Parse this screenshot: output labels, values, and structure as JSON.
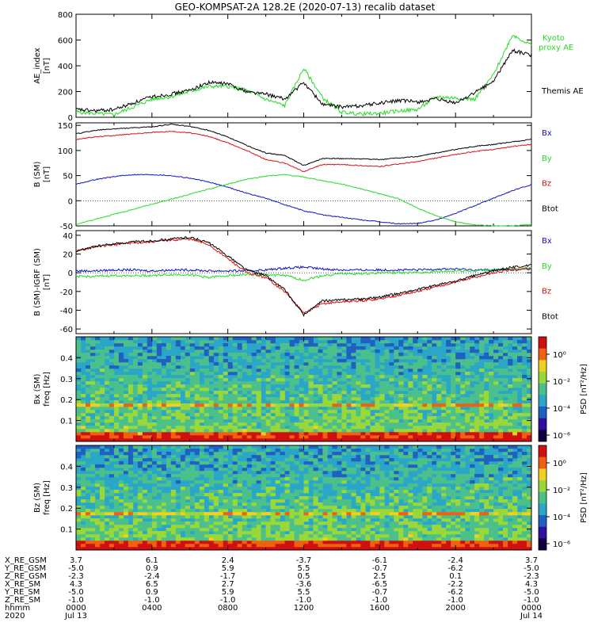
{
  "title": "GEO-KOMPSAT-2A 128.2E (2020-07-13) recalib dataset",
  "colors": {
    "black": "#000000",
    "green": "#22dd22",
    "red": "#dd1111",
    "blue": "#1111cc",
    "panel_bg": "#ffffff",
    "spec_bg": "#3aa0c0"
  },
  "chart_data": [
    {
      "id": "ae",
      "type": "line",
      "ylabel": "AE_index",
      "yunit": "[nT]",
      "ylim": [
        0,
        800
      ],
      "yticks": [
        0,
        200,
        400,
        600,
        800
      ],
      "x": [
        0,
        1,
        2,
        3,
        4,
        5,
        6,
        7,
        8,
        9,
        10,
        11,
        12,
        13,
        14,
        15,
        16,
        17,
        18,
        19,
        20,
        21,
        22,
        23,
        24
      ],
      "series": [
        {
          "name": "Kyoto proxy AE",
          "label_lines": [
            "Kyoto",
            "proxy AE"
          ],
          "color": "#22dd22",
          "values": [
            40,
            30,
            20,
            80,
            140,
            160,
            200,
            240,
            240,
            210,
            140,
            90,
            380,
            150,
            40,
            25,
            30,
            50,
            60,
            160,
            150,
            140,
            330,
            640,
            560
          ]
        },
        {
          "name": "Themis AE",
          "label_lines": [
            "Themis AE"
          ],
          "color": "#000000",
          "values": [
            60,
            50,
            60,
            110,
            160,
            180,
            210,
            270,
            260,
            200,
            180,
            140,
            270,
            100,
            80,
            90,
            110,
            130,
            120,
            140,
            110,
            190,
            280,
            520,
            480
          ]
        }
      ]
    },
    {
      "id": "bsm",
      "type": "line",
      "ylabel": "B (SM)",
      "yunit": "[nT]",
      "ylim": [
        -50,
        155
      ],
      "yticks": [
        -50,
        0,
        50,
        100,
        150
      ],
      "x": [
        0,
        1,
        2,
        3,
        4,
        5,
        6,
        7,
        8,
        9,
        10,
        11,
        12,
        13,
        14,
        15,
        16,
        17,
        18,
        19,
        20,
        21,
        22,
        23,
        24
      ],
      "series": [
        {
          "name": "Bx",
          "color": "#1111cc",
          "values": [
            33,
            42,
            48,
            52,
            52,
            50,
            45,
            37,
            27,
            15,
            5,
            -8,
            -20,
            -28,
            -33,
            -38,
            -42,
            -46,
            -45,
            -38,
            -25,
            -10,
            5,
            20,
            32
          ]
        },
        {
          "name": "By",
          "color": "#22dd22",
          "values": [
            -47,
            -37,
            -27,
            -17,
            -7,
            3,
            13,
            23,
            33,
            43,
            49,
            52,
            47,
            40,
            33,
            24,
            14,
            4,
            -15,
            -30,
            -42,
            -48,
            -50,
            -50,
            -47
          ]
        },
        {
          "name": "Bz",
          "color": "#dd1111",
          "values": [
            122,
            127,
            130,
            133,
            136,
            138,
            135,
            128,
            115,
            100,
            82,
            75,
            58,
            72,
            72,
            70,
            68,
            73,
            78,
            85,
            92,
            98,
            102,
            108,
            112
          ]
        },
        {
          "name": "Btot",
          "color": "#000000",
          "values": [
            133,
            140,
            143,
            145,
            147,
            152,
            148,
            140,
            127,
            110,
            95,
            90,
            70,
            84,
            84,
            83,
            82,
            85,
            88,
            95,
            102,
            108,
            112,
            117,
            122
          ]
        }
      ]
    },
    {
      "id": "bigrf",
      "type": "line",
      "ylabel": "B (SM)-IGRF (SM)",
      "yunit": "[nT]",
      "ylim": [
        -65,
        45
      ],
      "yticks": [
        -60,
        -40,
        -20,
        0,
        20,
        40
      ],
      "x": [
        0,
        1,
        2,
        3,
        4,
        5,
        6,
        7,
        8,
        9,
        10,
        11,
        12,
        13,
        14,
        15,
        16,
        17,
        18,
        19,
        20,
        21,
        22,
        23,
        24
      ],
      "series": [
        {
          "name": "Bx",
          "color": "#1111cc",
          "values": [
            2,
            2,
            3,
            3,
            2,
            3,
            3,
            2,
            2,
            2,
            3,
            5,
            6,
            4,
            3,
            3,
            3,
            3,
            3,
            4,
            4,
            3,
            3,
            3,
            4
          ]
        },
        {
          "name": "By",
          "color": "#22dd22",
          "values": [
            -4,
            -4,
            -3,
            -3,
            -3,
            -2,
            -2,
            -5,
            -3,
            -2,
            -2,
            -3,
            -8,
            -3,
            -1,
            -1,
            0,
            0,
            0,
            1,
            2,
            2,
            3,
            4,
            5
          ]
        },
        {
          "name": "Bz",
          "color": "#dd1111",
          "values": [
            23,
            28,
            30,
            32,
            33,
            35,
            36,
            30,
            15,
            0,
            -5,
            -20,
            -43,
            -33,
            -31,
            -30,
            -28,
            -24,
            -20,
            -15,
            -10,
            -5,
            0,
            3,
            5
          ]
        },
        {
          "name": "Btot",
          "color": "#000000",
          "values": [
            23,
            28,
            31,
            33,
            34,
            36,
            38,
            32,
            18,
            3,
            -3,
            -18,
            -45,
            -30,
            -29,
            -28,
            -26,
            -22,
            -18,
            -13,
            -9,
            -3,
            2,
            6,
            8
          ]
        }
      ]
    },
    {
      "id": "spec_bx",
      "type": "heatmap",
      "ylabel": "Bx (SM)",
      "yunit": "freq [Hz]",
      "ylim": [
        0,
        0.5
      ],
      "yticks": [
        0.1,
        0.2,
        0.3,
        0.4
      ],
      "colorbar": {
        "label": "PSD [nT²/Hz]",
        "ticks": [
          "10⁰",
          "10⁻²",
          "10⁻⁴",
          "10⁻⁶"
        ]
      },
      "features": [
        "Pc1 emission 0.18-0.32 Hz near 0530-0700",
        "narrowband line at 0.17 Hz",
        "emission 0.12-0.28 Hz near 1130-1230"
      ]
    },
    {
      "id": "spec_bz",
      "type": "heatmap",
      "ylabel": "Bz (SM)",
      "yunit": "freq [Hz]",
      "ylim": [
        0,
        0.5
      ],
      "yticks": [
        0.1,
        0.2,
        0.3,
        0.4
      ],
      "colorbar": {
        "label": "PSD [nT²/Hz]",
        "ticks": [
          "10⁰",
          "10⁻²",
          "10⁻⁴",
          "10⁻⁶"
        ]
      },
      "features": [
        "emission 0.1-0.45 Hz near 0530-0700",
        "narrowband line at 0.17 Hz",
        "weak emission near 1130-1230"
      ]
    }
  ],
  "ephemeris": {
    "row_labels": [
      "X_RE_GSM",
      "Y_RE_GSM",
      "Z_RE_GSM",
      "X_RE_SM",
      "Y_RE_SM",
      "Z_RE_SM",
      "hhmm",
      "2020"
    ],
    "columns": [
      {
        "values": [
          "3.7",
          "-5.0",
          "-2.3",
          "4.3",
          "-5.0",
          "-1.0",
          "0000",
          "Jul 13"
        ]
      },
      {
        "values": [
          "6.1",
          "0.9",
          "-2.4",
          "6.5",
          "0.9",
          "-1.0",
          "0400",
          ""
        ]
      },
      {
        "values": [
          "2.4",
          "5.9",
          "-1.7",
          "2.7",
          "5.9",
          "-1.0",
          "0800",
          ""
        ]
      },
      {
        "values": [
          "-3.7",
          "5.5",
          "0.5",
          "-3.6",
          "5.5",
          "-1.0",
          "1200",
          ""
        ]
      },
      {
        "values": [
          "-6.1",
          "-0.7",
          "2.5",
          "-6.5",
          "-0.7",
          "-1.0",
          "1600",
          ""
        ]
      },
      {
        "values": [
          "-2.4",
          "-6.2",
          "0.1",
          "-2.2",
          "-6.2",
          "-1.0",
          "2000",
          ""
        ]
      },
      {
        "values": [
          "3.7",
          "-5.0",
          "-2.3",
          "4.3",
          "-5.0",
          "-1.0",
          "0000",
          "Jul 14"
        ]
      }
    ]
  }
}
